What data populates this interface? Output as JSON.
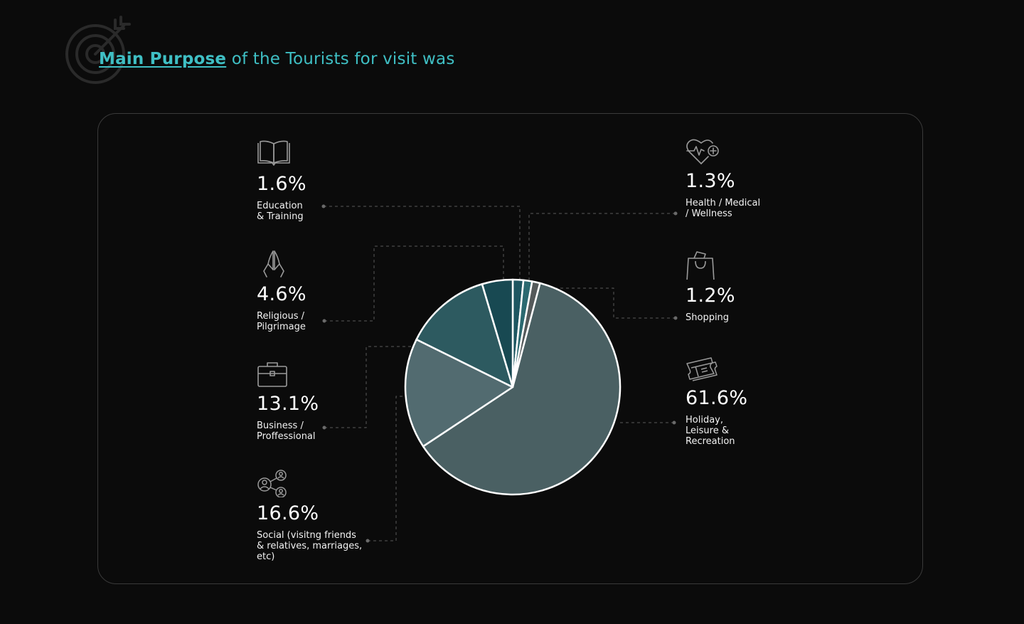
{
  "header": {
    "title_highlight": "Main Purpose",
    "title_rest": " of the Tourists for visit was",
    "icon": "target-arrow-icon"
  },
  "colors": {
    "background": "#0b0b0b",
    "accent": "#3fbfc4",
    "connector": "#5a5a5a"
  },
  "categories": [
    {
      "key": "education",
      "value": 1.6,
      "pct": "1.6%",
      "label": "Education\n& Training",
      "icon": "book-icon",
      "color": "#1d5661"
    },
    {
      "key": "health",
      "value": 1.3,
      "pct": "1.3%",
      "label": "Health / Medical\n/ Wellness",
      "icon": "heart-pulse-icon",
      "color": "#2b6970"
    },
    {
      "key": "shopping",
      "value": 1.2,
      "pct": "1.2%",
      "label": "Shopping",
      "icon": "shopping-bag-icon",
      "color": "#555a5b"
    },
    {
      "key": "holiday",
      "value": 61.6,
      "pct": "61.6%",
      "label": "Holiday,\nLeisure &\nRecreation",
      "icon": "tickets-icon",
      "color": "#4a6063"
    },
    {
      "key": "social",
      "value": 16.6,
      "pct": "16.6%",
      "label": "Social (visitng friends\n& relatives, marriages,\netc)",
      "icon": "network-people-icon",
      "color": "#526b70"
    },
    {
      "key": "business",
      "value": 13.1,
      "pct": "13.1%",
      "label": "Business /\nProffessional",
      "icon": "briefcase-icon",
      "color": "#2d5a60"
    },
    {
      "key": "religious",
      "value": 4.6,
      "pct": "4.6%",
      "label": "Religious /\nPilgrimage",
      "icon": "praying-hands-icon",
      "color": "#184952"
    }
  ],
  "chart_data": {
    "type": "pie",
    "title": "Main Purpose of the Tourists for visit was",
    "categories": [
      "Education & Training",
      "Health / Medical / Wellness",
      "Shopping",
      "Holiday, Leisure & Recreation",
      "Social (visitng friends & relatives, marriages, etc)",
      "Business / Proffessional",
      "Religious / Pilgrimage"
    ],
    "values": [
      1.6,
      1.3,
      1.2,
      61.6,
      16.6,
      13.1,
      4.6
    ],
    "order": "clockwise from 12 o'clock",
    "legend": "icon labels on left and right of pie"
  }
}
